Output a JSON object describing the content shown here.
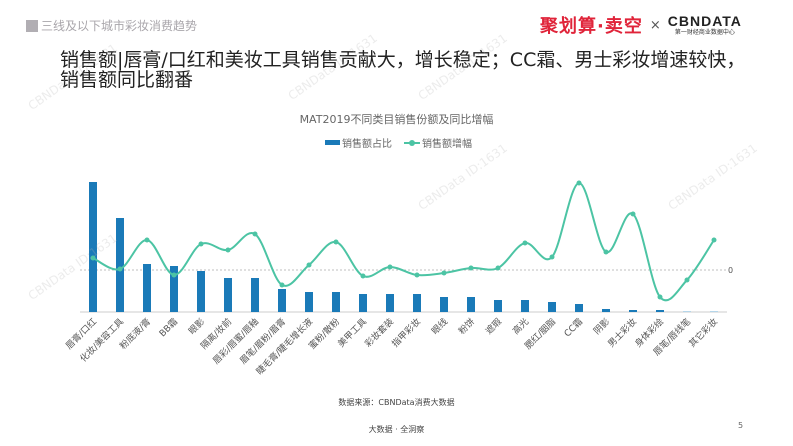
{
  "header": {
    "section_label": "三线及以下城市彩妆消费趋势",
    "logo_left": "聚划算·卖空",
    "logo_times": "×",
    "logo_right": "CBNDATA",
    "logo_right_sub": "第一财经商业数据中心"
  },
  "headline": "销售额|唇膏/口红和美妆工具销售贡献大，增长稳定；CC霜、男士彩妆增速较快，销售额同比翻番",
  "chart_data": {
    "type": "bar+line",
    "title": "MAT2019不同类目销售份额及同比增幅",
    "legend_position": "top",
    "grid": false,
    "zero_label": "0",
    "categories": [
      "唇膏/口红",
      "化妆/美容工具",
      "粉底液/膏",
      "BB霜",
      "眼影",
      "隔离/妆前",
      "唇彩/唇蜜/唇釉",
      "眉笔/眉粉/眉膏",
      "睫毛膏/睫毛增长液",
      "蜜粉/散粉",
      "美甲工具",
      "彩妆套装",
      "指甲彩妆",
      "眼线",
      "粉饼",
      "遮瑕",
      "高光",
      "腮红/胭脂",
      "CC霜",
      "阴影",
      "男士彩妆",
      "身体彩绘",
      "唇笔/唇线笔",
      "其它彩妆"
    ],
    "series": [
      {
        "name": "销售额占比",
        "type": "bar",
        "color": "#1a7ab8",
        "values": [
          130,
          94,
          48,
          46,
          41,
          34,
          34,
          23,
          20,
          20,
          18,
          18,
          18,
          15,
          15,
          12,
          12,
          10,
          8,
          3,
          2,
          2,
          1,
          1
        ]
      },
      {
        "name": "销售额增幅",
        "type": "line",
        "color": "#4cc4a4",
        "values": [
          12,
          1,
          30,
          -5,
          26,
          20,
          36,
          -15,
          5,
          28,
          -6,
          3,
          -5,
          -3,
          2,
          2,
          27,
          13,
          87,
          18,
          56,
          -27,
          -10,
          30
        ]
      }
    ]
  },
  "source": "数据来源：CBNData消费大数据",
  "footer": "大数据 · 全洞察",
  "page_number": "5",
  "watermark": "CBNData ID:1631"
}
